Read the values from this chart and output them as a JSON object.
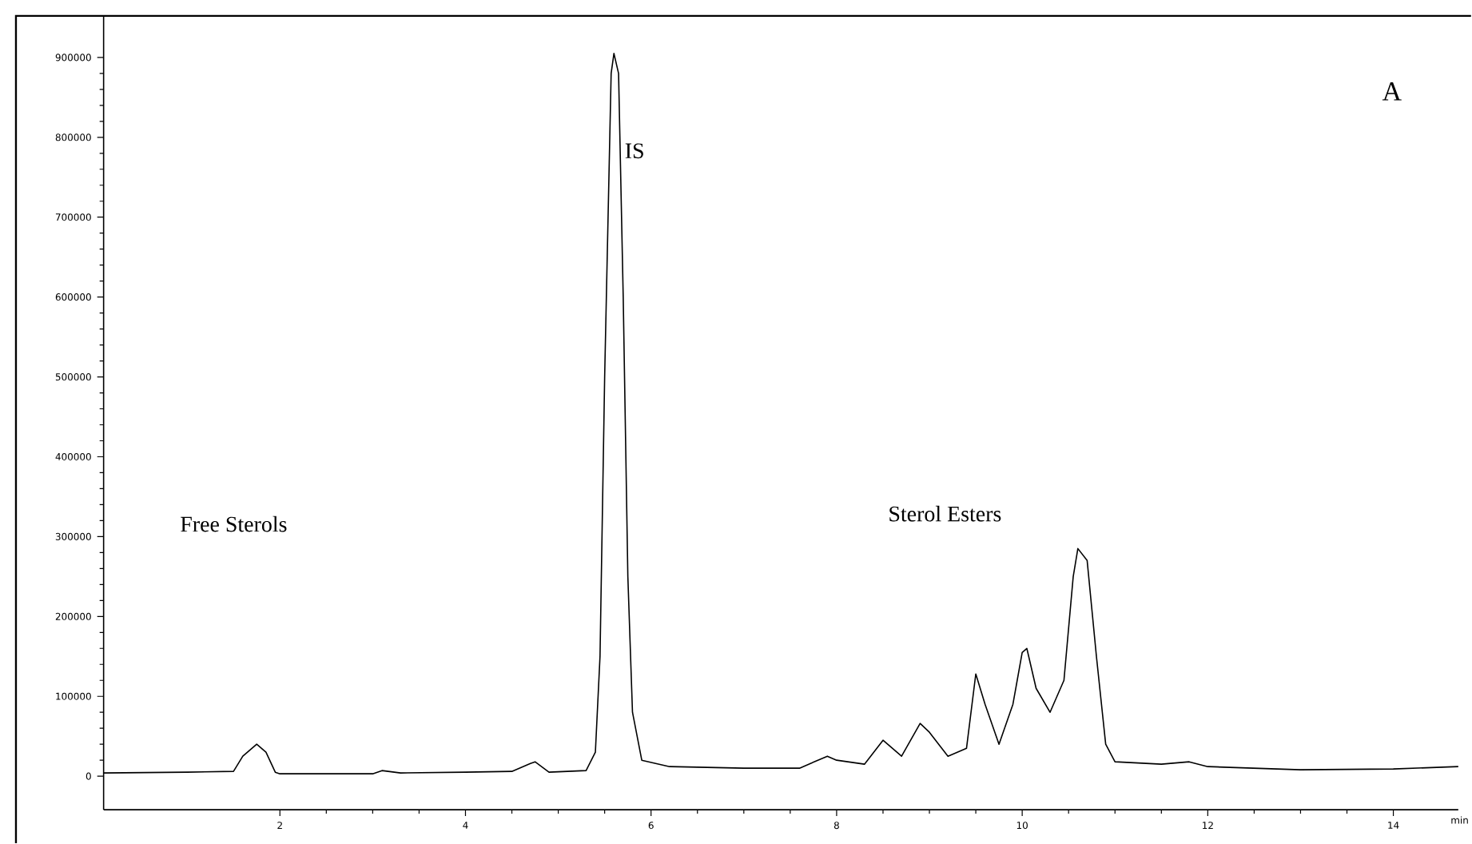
{
  "chart_data": {
    "type": "line",
    "xlabel": "min",
    "color": "#000000",
    "marker": "none",
    "line_style": "solid",
    "grid": false,
    "xlim": [
      0.1,
      14.7
    ],
    "ylim": [
      -42000,
      952000
    ],
    "xticks": [
      2,
      4,
      6,
      8,
      10,
      12,
      14
    ],
    "yticks": [
      0,
      100000,
      200000,
      300000,
      400000,
      500000,
      600000,
      700000,
      800000,
      900000
    ],
    "x": [
      0.1,
      1.0,
      1.5,
      1.6,
      1.7,
      1.75,
      1.85,
      1.95,
      2.0,
      3.0,
      3.1,
      3.3,
      4.0,
      4.5,
      4.7,
      4.75,
      4.9,
      5.3,
      5.4,
      5.45,
      5.5,
      5.57,
      5.6,
      5.65,
      5.7,
      5.75,
      5.8,
      5.9,
      6.2,
      7.0,
      7.6,
      7.9,
      8.0,
      8.3,
      8.5,
      8.7,
      8.9,
      9.0,
      9.2,
      9.4,
      9.5,
      9.6,
      9.75,
      9.9,
      10.0,
      10.05,
      10.15,
      10.3,
      10.45,
      10.55,
      10.6,
      10.7,
      10.8,
      10.9,
      11.0,
      11.5,
      11.8,
      12.0,
      13.0,
      14.0,
      14.7
    ],
    "values": [
      4000,
      5000,
      6000,
      25000,
      35000,
      40000,
      30000,
      5000,
      3000,
      3000,
      7000,
      4000,
      5000,
      6000,
      16000,
      18000,
      5000,
      7000,
      30000,
      150000,
      500000,
      880000,
      905000,
      880000,
      600000,
      250000,
      80000,
      20000,
      12000,
      10000,
      10000,
      25000,
      20000,
      15000,
      45000,
      25000,
      66000,
      55000,
      25000,
      35000,
      128000,
      90000,
      40000,
      90000,
      155000,
      160000,
      110000,
      80000,
      120000,
      250000,
      285000,
      270000,
      150000,
      40000,
      18000,
      15000,
      18000,
      12000,
      8000,
      9000,
      12000
    ],
    "annotations": [
      "Free Sterols",
      "IS",
      "Sterol Esters",
      "A"
    ]
  }
}
